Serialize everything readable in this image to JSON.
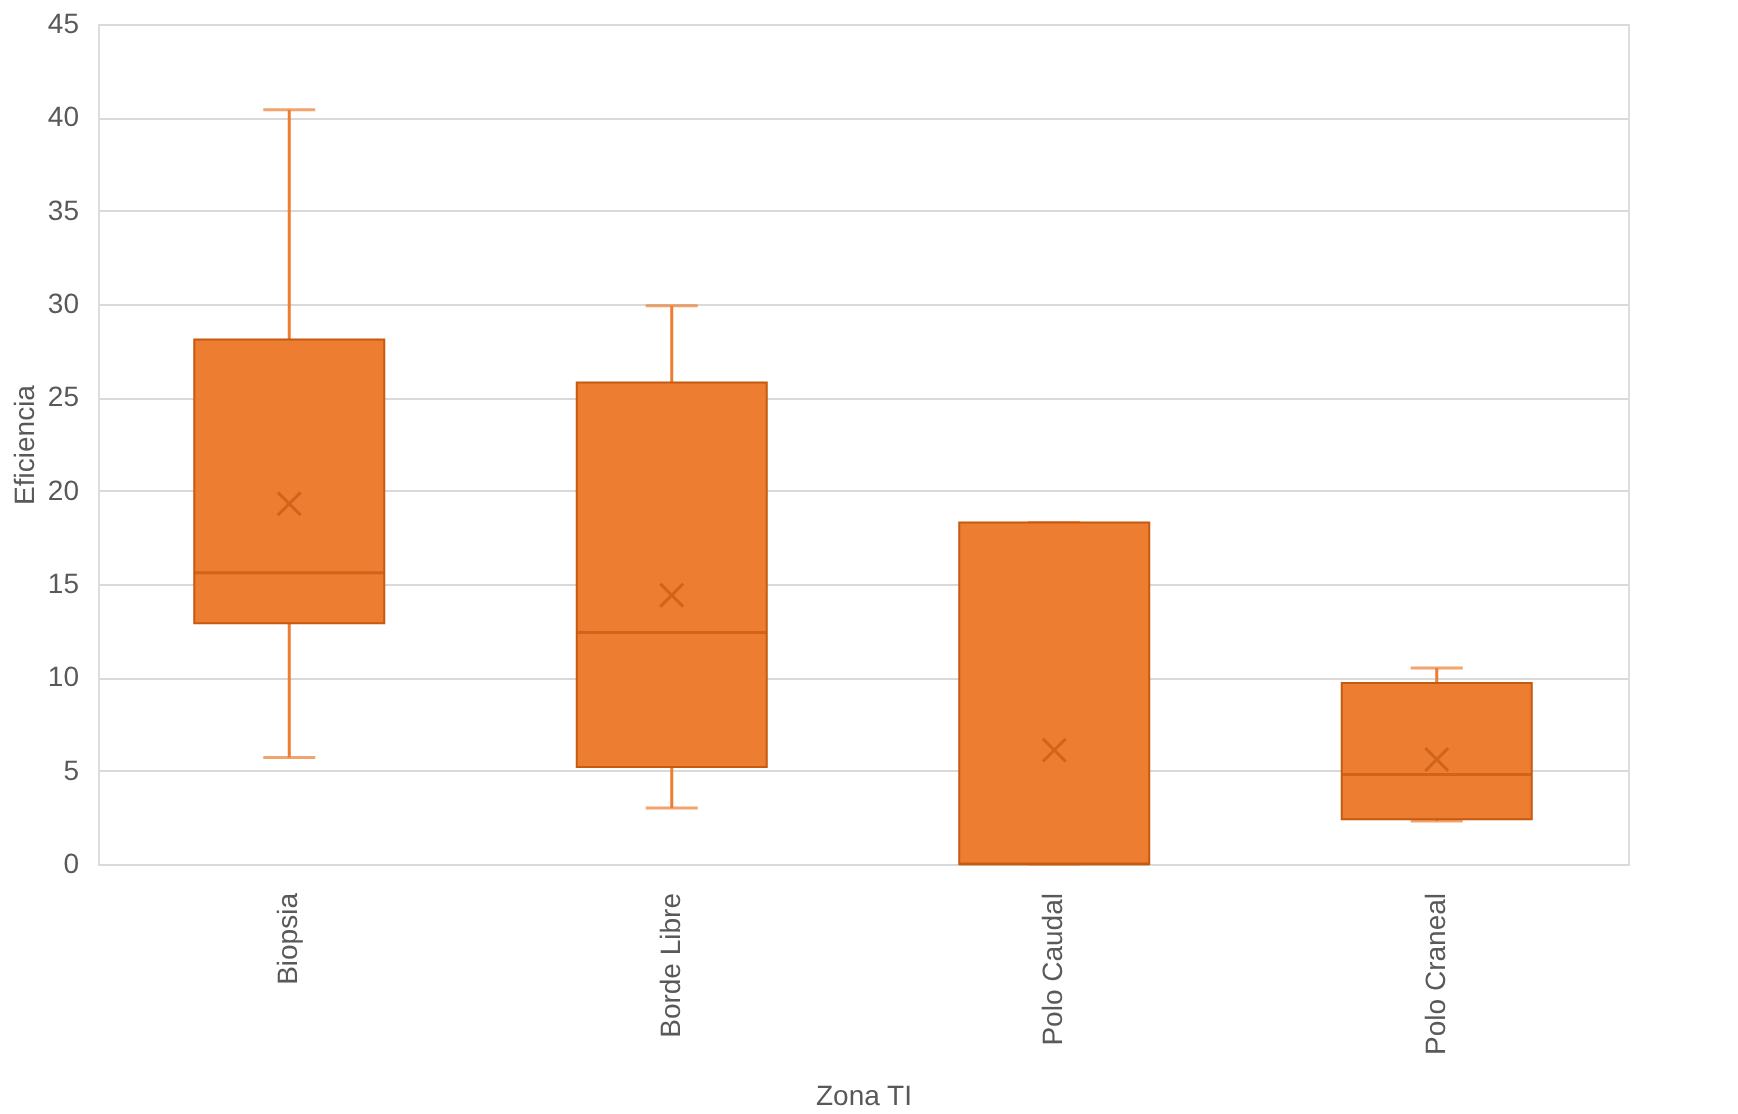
{
  "chart_data": {
    "type": "box",
    "xlabel": "Zona TI",
    "ylabel": "Eficiencia",
    "categories": [
      "Biopsia",
      "Borde Libre",
      "Polo Caudal",
      "Polo Craneal"
    ],
    "series": [
      {
        "color": "#ed7d31",
        "boxes": [
          {
            "low": 5.7,
            "q1": 12.9,
            "median": 15.6,
            "q3": 28.1,
            "high": 40.4,
            "mean": 19.3
          },
          {
            "low": 3.0,
            "q1": 5.2,
            "median": 12.4,
            "q3": 25.8,
            "high": 29.9,
            "mean": 14.4
          },
          {
            "low": 0,
            "q1": 0,
            "median": 0,
            "q3": 18.3,
            "high": 18.3,
            "mean": 6.1
          },
          {
            "low": 2.3,
            "q1": 2.4,
            "median": 4.8,
            "q3": 9.7,
            "high": 10.5,
            "mean": 5.6
          }
        ]
      }
    ],
    "ylim": [
      0,
      45
    ],
    "yticks": [
      0,
      5,
      10,
      15,
      20,
      25,
      30,
      35,
      40,
      45
    ],
    "grid": "y"
  }
}
